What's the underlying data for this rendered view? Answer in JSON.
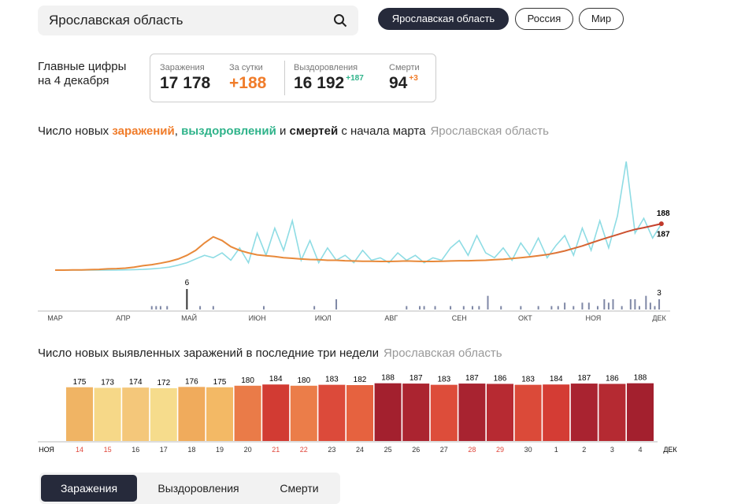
{
  "search": {
    "query": "Ярославская область"
  },
  "regions": [
    "Ярославская область",
    "Россия",
    "Мир"
  ],
  "summary": {
    "heading": [
      "Главные цифры",
      "на 4 декабря"
    ],
    "stats": [
      {
        "label": "Заражения",
        "value": "17 178"
      },
      {
        "label": "За сутки",
        "value": "+188"
      },
      {
        "label": "Выздоровления",
        "value": "16 192",
        "delta": "+187"
      },
      {
        "label": "Смерти",
        "value": "94",
        "delta": "+3"
      }
    ]
  },
  "titles": [
    {
      "parts": [
        "Число новых ",
        "заражений",
        ", ",
        "выздоровлений",
        " и ",
        "смертей",
        " с начала марта"
      ],
      "subtitle": "Ярославская область"
    },
    {
      "parts": [
        "Число новых выявленных заражений в последние три недели"
      ],
      "subtitle": "Ярославская область"
    }
  ],
  "tabs": [
    "Заражения",
    "Выздоровления",
    "Смерти"
  ],
  "chart_data": [
    {
      "type": "line",
      "xlim": [
        0,
        280
      ],
      "ylim": [
        0,
        450
      ],
      "x": [
        0,
        4,
        8,
        12,
        16,
        20,
        24,
        28,
        32,
        36,
        40,
        44,
        48,
        52,
        56,
        60,
        64,
        68,
        72,
        76,
        80,
        84,
        88,
        92,
        96,
        100,
        104,
        108,
        112,
        116,
        120,
        124,
        128,
        132,
        136,
        140,
        144,
        148,
        152,
        156,
        160,
        164,
        168,
        172,
        176,
        180,
        184,
        188,
        192,
        196,
        200,
        204,
        208,
        212,
        216,
        220,
        224,
        228,
        232,
        236,
        240,
        244,
        248,
        252,
        256,
        260,
        264,
        268,
        272,
        276
      ],
      "series": [
        {
          "name": "заражений",
          "color": "#e8893a",
          "color_end": "#c0392b",
          "values": [
            0,
            0,
            1,
            1,
            2,
            3,
            5,
            6,
            8,
            12,
            18,
            22,
            28,
            35,
            45,
            60,
            80,
            110,
            135,
            120,
            95,
            80,
            70,
            62,
            58,
            55,
            50,
            48,
            45,
            43,
            42,
            40,
            40,
            38,
            37,
            36,
            36,
            35,
            35,
            36,
            37,
            36,
            35,
            35,
            36,
            37,
            38,
            38,
            39,
            40,
            42,
            44,
            47,
            50,
            54,
            58,
            63,
            70,
            78,
            88,
            98,
            110,
            122,
            133,
            144,
            155,
            165,
            172,
            180,
            188
          ]
        },
        {
          "name": "выздоровлений",
          "color": "#8edce4",
          "values": [
            0,
            0,
            0,
            0,
            0,
            0,
            0,
            0,
            1,
            2,
            3,
            5,
            8,
            12,
            20,
            30,
            45,
            60,
            50,
            70,
            40,
            90,
            30,
            150,
            60,
            170,
            80,
            200,
            40,
            120,
            30,
            90,
            40,
            60,
            30,
            80,
            40,
            50,
            30,
            70,
            40,
            60,
            30,
            50,
            40,
            90,
            120,
            60,
            140,
            70,
            50,
            90,
            40,
            110,
            60,
            130,
            50,
            100,
            140,
            60,
            170,
            80,
            200,
            90,
            220,
            440,
            150,
            210,
            130,
            187
          ]
        }
      ]
    },
    {
      "type": "bar",
      "name": "смертей",
      "color": "#7f88a6",
      "peak_color": "#333333",
      "xlim": [
        0,
        280
      ],
      "ylim": [
        0,
        6
      ],
      "xticks": [
        {
          "value": 0,
          "label": "МАР"
        },
        {
          "value": 31,
          "label": "АПР"
        },
        {
          "value": 61,
          "label": "МАЙ"
        },
        {
          "value": 92,
          "label": "ИЮН"
        },
        {
          "value": 122,
          "label": "ИЮЛ"
        },
        {
          "value": 153,
          "label": "АВГ"
        },
        {
          "value": 184,
          "label": "СЕН"
        },
        {
          "value": 214,
          "label": "ОКТ"
        },
        {
          "value": 245,
          "label": "НОЯ"
        },
        {
          "value": 275,
          "label": "ДЕК"
        }
      ],
      "x": [
        44,
        46,
        48,
        51,
        60,
        66,
        72,
        95,
        118,
        128,
        160,
        166,
        168,
        173,
        180,
        186,
        190,
        193,
        197,
        203,
        212,
        220,
        226,
        229,
        232,
        236,
        240,
        243,
        247,
        250,
        252,
        254,
        258,
        262,
        264,
        266,
        269,
        271,
        273,
        275
      ],
      "values": [
        1,
        1,
        1,
        1,
        6,
        1,
        1,
        1,
        1,
        3,
        1,
        1,
        1,
        1,
        1,
        1,
        1,
        1,
        4,
        1,
        1,
        1,
        1,
        1,
        2,
        1,
        2,
        2,
        1,
        3,
        2,
        3,
        1,
        3,
        3,
        1,
        4,
        2,
        1,
        3
      ]
    },
    {
      "type": "bar",
      "ylim": [
        0,
        200
      ],
      "period_start": "НОЯ",
      "period_end": "ДЕК",
      "categories": [
        "14",
        "15",
        "16",
        "17",
        "18",
        "19",
        "20",
        "21",
        "22",
        "23",
        "24",
        "25",
        "26",
        "27",
        "28",
        "29",
        "30",
        "1",
        "2",
        "3",
        "4"
      ],
      "values": [
        175,
        173,
        174,
        172,
        176,
        175,
        180,
        184,
        180,
        183,
        182,
        188,
        187,
        183,
        187,
        186,
        183,
        184,
        187,
        186,
        188
      ],
      "colors": [
        "#f0b464",
        "#f6d888",
        "#f4c77a",
        "#f6dc8c",
        "#f0ab5c",
        "#f3b965",
        "#ea7b48",
        "#d23b33",
        "#eb7d49",
        "#dc4a3a",
        "#e6623f",
        "#a3202e",
        "#ab2430",
        "#dd4d3a",
        "#a82330",
        "#b72a32",
        "#db4a39",
        "#d43c34",
        "#a92330",
        "#b52a32",
        "#a3202e"
      ],
      "category_colors": [
        "#e0483d",
        "#e0483d",
        "#333333",
        "#333333",
        "#333333",
        "#333333",
        "#333333",
        "#e0483d",
        "#e0483d",
        "#333333",
        "#333333",
        "#333333",
        "#333333",
        "#333333",
        "#e0483d",
        "#e0483d",
        "#333333",
        "#333333",
        "#333333",
        "#333333",
        "#333333"
      ]
    }
  ]
}
